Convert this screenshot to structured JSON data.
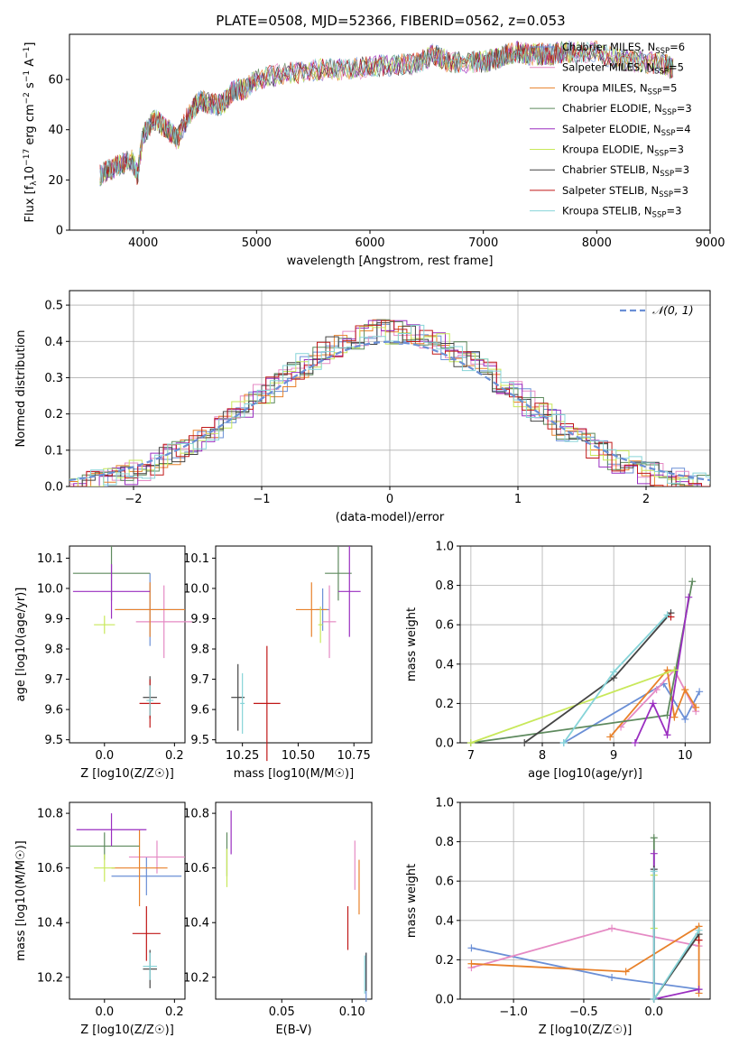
{
  "title": "PLATE=0508, MJD=52366, FIBERID=0562, z=0.053",
  "series_legend": [
    {
      "name": "Chabrier MILES, N_SSP=6",
      "base": "Chabrier MILES, N",
      "sub": "SSP",
      "tail": "=6",
      "color": "#6a8fd6"
    },
    {
      "name": "Salpeter MILES, N_SSP=5",
      "base": "Salpeter MILES, N",
      "sub": "SSP",
      "tail": "=5",
      "color": "#e58ac4"
    },
    {
      "name": "Kroupa MILES, N_SSP=5",
      "base": "Kroupa MILES, N",
      "sub": "SSP",
      "tail": "=5",
      "color": "#e8812a"
    },
    {
      "name": "Chabrier ELODIE, N_SSP=3",
      "base": "Chabrier ELODIE, N",
      "sub": "SSP",
      "tail": "=3",
      "color": "#5e8a5e"
    },
    {
      "name": "Salpeter ELODIE, N_SSP=4",
      "base": "Salpeter ELODIE, N",
      "sub": "SSP",
      "tail": "=4",
      "color": "#9a2ec0"
    },
    {
      "name": "Kroupa ELODIE, N_SSP=3",
      "base": "Kroupa ELODIE, N",
      "sub": "SSP",
      "tail": "=3",
      "color": "#c8e85a"
    },
    {
      "name": "Chabrier STELIB, N_SSP=3",
      "base": "Chabrier STELIB, N",
      "sub": "SSP",
      "tail": "=3",
      "color": "#444444"
    },
    {
      "name": "Salpeter STELIB, N_SSP=3",
      "base": "Salpeter STELIB, N",
      "sub": "SSP",
      "tail": "=3",
      "color": "#c01818"
    },
    {
      "name": "Kroupa STELIB, N_SSP=3",
      "base": "Kroupa STELIB, N",
      "sub": "SSP",
      "tail": "=3",
      "color": "#86d4d8"
    }
  ],
  "chart_data": [
    {
      "id": "spectrum",
      "type": "line",
      "ylabel_parts": {
        "a": "Flux [f",
        "a_sub": "λ",
        "b": "10",
        "b_sup": "−17",
        "c": " erg cm",
        "c_sup": "−2",
        "d": " s",
        "d_sup": "−1",
        "e": " A",
        "e_sup": "−1",
        "f": "]"
      },
      "xlabel": "wavelength [Angstrom, rest frame]",
      "xlim": [
        3350,
        9000
      ],
      "ylim": [
        0,
        78
      ],
      "xticks": [
        4000,
        5000,
        6000,
        7000,
        8000,
        9000
      ],
      "yticks": [
        0,
        20,
        40,
        60
      ],
      "flux_x": [
        3620,
        3700,
        3800,
        3900,
        3950,
        4000,
        4100,
        4200,
        4300,
        4400,
        4500,
        4600,
        4700,
        4800,
        4900,
        5000,
        5200,
        5400,
        5600,
        5800,
        6000,
        6200,
        6400,
        6563,
        6700,
        6900,
        7000,
        7100,
        7200,
        7300,
        7400,
        7500,
        7600,
        7700,
        7800,
        8000,
        8200,
        8400,
        8600,
        8680
      ],
      "flux_y": [
        22,
        24,
        26,
        28,
        22,
        38,
        44,
        41,
        36,
        46,
        52,
        50,
        50,
        56,
        56,
        60,
        62,
        63,
        64,
        64,
        65,
        66,
        66,
        70,
        67,
        67,
        67,
        68,
        70,
        71,
        70,
        70,
        70,
        71,
        71,
        71,
        68,
        67,
        66,
        64
      ]
    },
    {
      "id": "residual_histogram",
      "type": "histogram",
      "xlabel": "(data-model)/error",
      "ylabel": "Normed distribution",
      "legend": "N(0, 1)",
      "legend_glyph": "𝒩(0, 1)",
      "xlim": [
        -2.5,
        2.5
      ],
      "ylim": [
        0,
        0.54
      ],
      "xticks": [
        -2,
        -1,
        0,
        1,
        2
      ],
      "yticks": [
        0.0,
        0.1,
        0.2,
        0.3,
        0.4,
        0.5
      ],
      "grid": true,
      "bin_width": 0.1,
      "bin_start": -2.5,
      "reference_series": "N(0,1) gaussian",
      "grid_on": true
    },
    {
      "id": "age_vs_Z",
      "type": "errorbar",
      "xlabel": "Z [log10(Z/Z☉)]",
      "ylabel": "age  [log10(age/yr)]",
      "xlim": [
        -0.1,
        0.23
      ],
      "ylim": [
        9.49,
        10.14
      ],
      "xticks": [
        0.0,
        0.2
      ],
      "yticks": [
        9.5,
        9.6,
        9.7,
        9.8,
        9.9,
        10.0,
        10.1
      ],
      "points": [
        {
          "x": 0.13,
          "y": 9.93,
          "xerr": 0.1,
          "yerr": 0.12
        },
        {
          "x": 0.17,
          "y": 9.89,
          "xerr": 0.08,
          "yerr": 0.12
        },
        {
          "x": 0.13,
          "y": 9.93,
          "xerr": 0.1,
          "yerr": 0.09
        },
        {
          "x": 0.02,
          "y": 10.05,
          "xerr": 0.11,
          "yerr": 0.09
        },
        {
          "x": 0.02,
          "y": 9.99,
          "xerr": 0.11,
          "yerr": 0.09
        },
        {
          "x": 0.0,
          "y": 9.88,
          "xerr": 0.03,
          "yerr": 0.03
        },
        {
          "x": 0.13,
          "y": 9.64,
          "xerr": 0.02,
          "yerr": 0.07
        },
        {
          "x": 0.13,
          "y": 9.62,
          "xerr": 0.03,
          "yerr": 0.08
        },
        {
          "x": 0.13,
          "y": 9.63,
          "xerr": 0.01,
          "yerr": 0.05
        }
      ]
    },
    {
      "id": "age_vs_mass",
      "type": "errorbar",
      "xlabel": "mass [log10(M/M☉)]",
      "xlim": [
        10.13,
        10.83
      ],
      "ylim": [
        9.49,
        10.14
      ],
      "xticks": [
        10.25,
        10.5,
        10.75
      ],
      "yticks": [
        9.5,
        9.6,
        9.7,
        9.8,
        9.9,
        10.0,
        10.1
      ],
      "points": [
        {
          "x": 10.61,
          "y": 9.93,
          "xerr": 0.03,
          "yerr": 0.07
        },
        {
          "x": 10.64,
          "y": 9.89,
          "xerr": 0.03,
          "yerr": 0.12
        },
        {
          "x": 10.56,
          "y": 9.93,
          "xerr": 0.07,
          "yerr": 0.09
        },
        {
          "x": 10.68,
          "y": 10.05,
          "xerr": 0.06,
          "yerr": 0.09
        },
        {
          "x": 10.73,
          "y": 9.99,
          "xerr": 0.05,
          "yerr": 0.15
        },
        {
          "x": 10.6,
          "y": 9.88,
          "xerr": 0.01,
          "yerr": 0.06
        },
        {
          "x": 10.23,
          "y": 9.64,
          "xerr": 0.03,
          "yerr": 0.11
        },
        {
          "x": 10.36,
          "y": 9.62,
          "xerr": 0.06,
          "yerr": 0.19
        },
        {
          "x": 10.25,
          "y": 9.62,
          "xerr": 0.01,
          "yerr": 0.1
        }
      ]
    },
    {
      "id": "weight_vs_age",
      "type": "line",
      "xlabel": "age  [log10(age/yr)]",
      "ylabel": "mass weight",
      "xlim": [
        6.85,
        10.35
      ],
      "ylim": [
        0,
        1.0
      ],
      "xticks": [
        7,
        8,
        9,
        10
      ],
      "yticks": [
        0.0,
        0.2,
        0.4,
        0.6,
        0.8,
        1.0
      ],
      "grid": true,
      "series": [
        {
          "x": [
            8.3,
            9.7,
            10.0,
            10.2
          ],
          "y": [
            0.0,
            0.3,
            0.12,
            0.26
          ]
        },
        {
          "x": [
            9.1,
            9.6,
            9.85,
            10.15
          ],
          "y": [
            0.08,
            0.27,
            0.37,
            0.16
          ]
        },
        {
          "x": [
            8.95,
            9.75,
            9.85,
            10.0,
            10.15
          ],
          "y": [
            0.03,
            0.37,
            0.13,
            0.27,
            0.18
          ]
        },
        {
          "x": [
            7.0,
            9.75,
            10.1
          ],
          "y": [
            0.0,
            0.14,
            0.82
          ]
        },
        {
          "x": [
            9.3,
            9.55,
            9.75,
            10.05
          ],
          "y": [
            0.0,
            0.2,
            0.04,
            0.74
          ]
        },
        {
          "x": [
            7.0,
            9.85
          ],
          "y": [
            0.0,
            0.37
          ]
        },
        {
          "x": [
            7.75,
            9.0,
            9.8
          ],
          "y": [
            0.0,
            0.33,
            0.66
          ]
        },
        {
          "x": [
            9.8
          ],
          "y": [
            0.64
          ]
        },
        {
          "x": [
            8.3,
            9.0,
            9.75
          ],
          "y": [
            0.0,
            0.36,
            0.65
          ]
        }
      ]
    },
    {
      "id": "mass_vs_Z",
      "type": "errorbar",
      "xlabel": "Z [log10(Z/Z☉)]",
      "ylabel": "mass [log10(M/M☉)]",
      "xlim": [
        -0.1,
        0.23
      ],
      "ylim": [
        10.12,
        10.84
      ],
      "xticks": [
        0.0,
        0.2
      ],
      "yticks": [
        10.2,
        10.4,
        10.6,
        10.8
      ],
      "points": [
        {
          "x": 0.12,
          "y": 10.57,
          "xerr": 0.1,
          "yerr": 0.07
        },
        {
          "x": 0.15,
          "y": 10.64,
          "xerr": 0.08,
          "yerr": 0.06
        },
        {
          "x": 0.1,
          "y": 10.6,
          "xerr": 0.08,
          "yerr": 0.14
        },
        {
          "x": 0.0,
          "y": 10.68,
          "xerr": 0.1,
          "yerr": 0.05
        },
        {
          "x": 0.02,
          "y": 10.74,
          "xerr": 0.1,
          "yerr": 0.06
        },
        {
          "x": 0.0,
          "y": 10.6,
          "xerr": 0.03,
          "yerr": 0.05
        },
        {
          "x": 0.13,
          "y": 10.23,
          "xerr": 0.02,
          "yerr": 0.07
        },
        {
          "x": 0.12,
          "y": 10.36,
          "xerr": 0.04,
          "yerr": 0.1
        },
        {
          "x": 0.13,
          "y": 10.24,
          "xerr": 0.02,
          "yerr": 0.05
        }
      ]
    },
    {
      "id": "mass_vs_ebv",
      "type": "errorbar",
      "xlabel": "E(B-V)",
      "xlim": [
        0.003,
        0.114
      ],
      "ylim": [
        10.12,
        10.84
      ],
      "xticks": [
        0.05,
        0.1
      ],
      "yticks": [
        10.2,
        10.4,
        10.6,
        10.8
      ],
      "points": [
        {
          "x": 0.11,
          "y": 10.2,
          "xerr": 0.0,
          "yerr": 0.09
        },
        {
          "x": 0.102,
          "y": 10.61,
          "xerr": 0.0,
          "yerr": 0.09
        },
        {
          "x": 0.105,
          "y": 10.53,
          "xerr": 0.0,
          "yerr": 0.1
        },
        {
          "x": 0.011,
          "y": 10.65,
          "xerr": 0.0,
          "yerr": 0.08
        },
        {
          "x": 0.014,
          "y": 10.73,
          "xerr": 0.0,
          "yerr": 0.08
        },
        {
          "x": 0.011,
          "y": 10.6,
          "xerr": 0.0,
          "yerr": 0.07
        },
        {
          "x": 0.11,
          "y": 10.22,
          "xerr": 0.0,
          "yerr": 0.07
        },
        {
          "x": 0.097,
          "y": 10.38,
          "xerr": 0.0,
          "yerr": 0.08
        },
        {
          "x": 0.109,
          "y": 10.21,
          "xerr": 0.0,
          "yerr": 0.07
        }
      ]
    },
    {
      "id": "weight_vs_Z",
      "type": "line",
      "xlabel": "Z [log10(Z/Z☉)]",
      "ylabel": "mass weight",
      "xlim": [
        -1.38,
        0.4
      ],
      "ylim": [
        0,
        1.0
      ],
      "xticks": [
        -1.0,
        -0.5,
        0.0
      ],
      "yticks": [
        0.0,
        0.2,
        0.4,
        0.6,
        0.8,
        1.0
      ],
      "grid": true,
      "series": [
        {
          "x": [
            -1.3,
            -0.3,
            0.32
          ],
          "y": [
            0.26,
            0.11,
            0.05
          ]
        },
        {
          "x": [
            -1.3,
            -0.3,
            0.32
          ],
          "y": [
            0.16,
            0.36,
            0.27
          ]
        },
        {
          "x": [
            -1.3,
            -0.2,
            0.32,
            0.32
          ],
          "y": [
            0.18,
            0.14,
            0.37,
            0.03
          ]
        },
        {
          "x": [
            0.0,
            0.0,
            0.32
          ],
          "y": [
            0.82,
            0.0,
            0.33
          ]
        },
        {
          "x": [
            0.0,
            0.0,
            0.32
          ],
          "y": [
            0.74,
            0.0,
            0.05
          ]
        },
        {
          "x": [
            0.0,
            0.0
          ],
          "y": [
            0.63,
            0.36
          ]
        },
        {
          "x": [
            0.0,
            0.0,
            0.32
          ],
          "y": [
            0.66,
            0.0,
            0.33
          ]
        },
        {
          "x": [
            0.32
          ],
          "y": [
            0.3
          ]
        },
        {
          "x": [
            0.0,
            0.0,
            0.32
          ],
          "y": [
            0.65,
            0.0,
            0.35
          ]
        }
      ]
    }
  ]
}
